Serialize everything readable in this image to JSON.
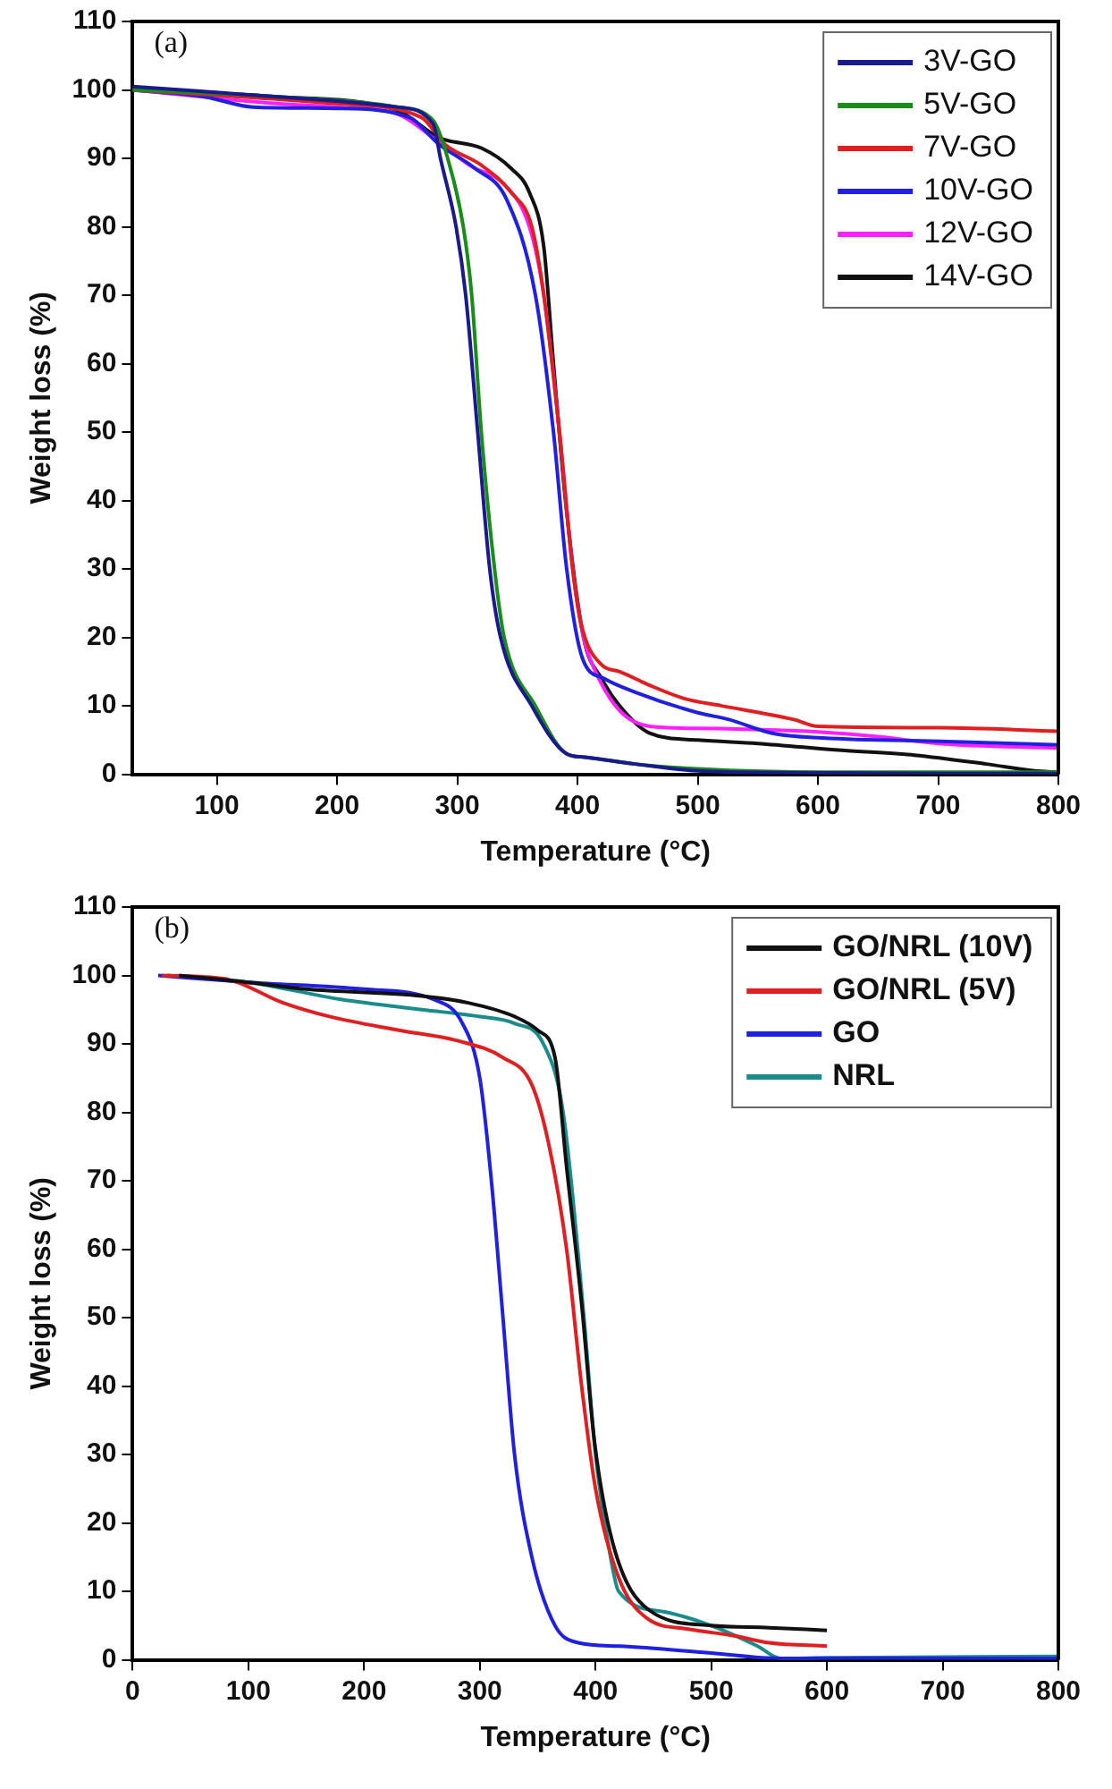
{
  "chart_data": [
    {
      "type": "line",
      "xlabel": "Temperature (°C)",
      "ylabel": "Weight loss (%)",
      "annotations": [
        "(a)"
      ],
      "legend": "top right",
      "grid": false,
      "xlim": [
        30,
        800
      ],
      "ylim": [
        0,
        110
      ],
      "xticks": [
        100,
        200,
        300,
        400,
        500,
        600,
        700,
        800
      ],
      "yticks": [
        0,
        10,
        20,
        30,
        40,
        50,
        60,
        70,
        80,
        90,
        100,
        110
      ],
      "series": [
        {
          "name": "3V-GO",
          "color": "#1a1a8c",
          "x": [
            30,
            150,
            250,
            280,
            286,
            299,
            307,
            317,
            327,
            336,
            362,
            391,
            406,
            448,
            500,
            604,
            800
          ],
          "values": [
            100.5,
            99,
            97.5,
            95,
            90,
            80,
            70,
            50,
            30,
            20,
            10,
            3,
            2.5,
            1.5,
            0.5,
            0.2,
            0.1
          ]
        },
        {
          "name": "5V-GO",
          "color": "#1a8c1a",
          "x": [
            30,
            150,
            250,
            280,
            292,
            305,
            312,
            320,
            331,
            339,
            365,
            391,
            406,
            448,
            500,
            604,
            800
          ],
          "values": [
            100,
            99,
            97.5,
            95.5,
            90,
            80,
            70,
            50,
            30,
            20,
            10,
            3,
            2.5,
            1.5,
            0.8,
            0.3,
            0.3
          ]
        },
        {
          "name": "7V-GO",
          "color": "#e02020",
          "x": [
            30,
            200,
            270,
            290,
            320,
            345,
            362,
            372,
            385,
            396,
            403,
            420,
            435,
            460,
            490,
            520,
            580,
            600,
            700,
            800
          ],
          "values": [
            100,
            98,
            96,
            92,
            89,
            85,
            80,
            70,
            50,
            30,
            22,
            16,
            15,
            13,
            11,
            10,
            8,
            7,
            6.8,
            6.3
          ]
        },
        {
          "name": "10V-GO",
          "color": "#2020e0",
          "x": [
            30,
            90,
            130,
            200,
            260,
            285,
            315,
            341,
            365,
            380,
            391,
            404,
            422,
            448,
            500,
            526,
            562,
            604,
            708,
            800
          ],
          "values": [
            100,
            99,
            97.5,
            97.3,
            96,
            92,
            88.5,
            84,
            70,
            50,
            30,
            17,
            14,
            12,
            9,
            8,
            6,
            5.3,
            4.8,
            4.3
          ]
        },
        {
          "name": "12V-GO",
          "color": "#ff20ff",
          "x": [
            30,
            150,
            200,
            250,
            280,
            310,
            340,
            360,
            372,
            385,
            396,
            405,
            415,
            435,
            460,
            500,
            600,
            650,
            700,
            800
          ],
          "values": [
            100,
            98,
            97.5,
            96.5,
            93,
            89,
            86,
            80,
            70,
            50,
            30,
            20,
            15,
            9.3,
            7,
            6.7,
            6.2,
            5.5,
            4.5,
            3.8
          ]
        },
        {
          "name": "14V-GO",
          "color": "#111111",
          "x": [
            30,
            150,
            250,
            285,
            320,
            345,
            360,
            372,
            380,
            390,
            405,
            420,
            435,
            460,
            500,
            550,
            620,
            680,
            740,
            780,
            800
          ],
          "values": [
            100,
            99,
            97,
            93,
            91.5,
            88.5,
            85,
            77,
            60,
            40,
            20,
            14,
            10,
            6,
            5,
            4.5,
            3.5,
            2.8,
            1.5,
            0.5,
            0.3
          ]
        }
      ]
    },
    {
      "type": "line",
      "xlabel": "Temperature (°C)",
      "ylabel": "Weight loss (%)",
      "annotations": [
        "(b)"
      ],
      "legend": "top right",
      "grid": false,
      "xlim": [
        0,
        800
      ],
      "ylim": [
        0,
        110
      ],
      "xticks": [
        0,
        100,
        200,
        300,
        400,
        500,
        600,
        700,
        800
      ],
      "yticks": [
        0,
        10,
        20,
        30,
        40,
        50,
        60,
        70,
        80,
        90,
        100,
        110
      ],
      "series": [
        {
          "name": "GO/NRL (10V)",
          "color": "#111111",
          "x": [
            40,
            100,
            150,
            250,
            290,
            330,
            350,
            365,
            375,
            388,
            399,
            415,
            446,
            500,
            550,
            600
          ],
          "values": [
            100,
            99,
            98,
            97,
            96,
            94,
            92,
            88,
            72,
            52,
            32,
            17,
            7.3,
            5,
            4.7,
            4.3
          ]
        },
        {
          "name": "GO/NRL (5V)",
          "color": "#e02020",
          "x": [
            25,
            80,
            130,
            170,
            230,
            280,
            320,
            345,
            360,
            375,
            388,
            400,
            420,
            445,
            480,
            520,
            550,
            600
          ],
          "values": [
            100,
            99.5,
            96,
            94,
            92,
            90.5,
            88,
            84,
            75,
            60,
            40,
            25,
            12,
            6,
            4.5,
            3.5,
            2.5,
            2
          ]
        },
        {
          "name": "GO",
          "color": "#2020e0",
          "x": [
            22,
            100,
            200,
            260,
            285,
            300,
            310,
            320,
            330,
            345,
            365,
            385,
            420,
            500,
            560,
            800
          ],
          "values": [
            100,
            99,
            98,
            96.5,
            93,
            85,
            70,
            50,
            30,
            15,
            5,
            2.5,
            2,
            1,
            0.2,
            0.2
          ]
        },
        {
          "name": "NRL",
          "color": "#1a8c8c",
          "x": [
            30,
            100,
            180,
            250,
            300,
            330,
            355,
            372,
            390,
            400,
            413,
            420,
            460,
            500,
            540,
            560,
            600,
            800
          ],
          "values": [
            100,
            99,
            96.5,
            95,
            94,
            93,
            90,
            80,
            50,
            30,
            15,
            10,
            7,
            5,
            2,
            0.2,
            0.3,
            0.5
          ]
        }
      ]
    }
  ]
}
